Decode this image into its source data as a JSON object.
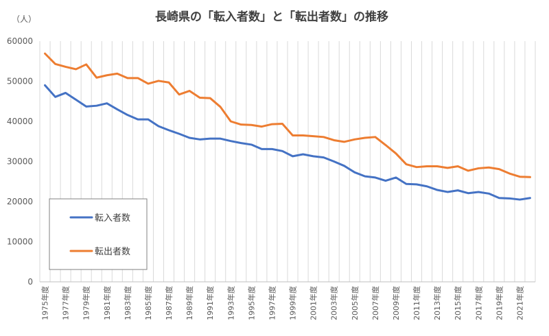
{
  "chart_data": {
    "type": "line",
    "title": "長崎県の「転入者数」と「転出者数」の推移",
    "ylabel": "（人）",
    "xlabel": "",
    "ylim": [
      0,
      60000
    ],
    "yticks": [
      0,
      10000,
      20000,
      30000,
      40000,
      50000,
      60000
    ],
    "grid": "vertical",
    "legend_position": "bottom-left",
    "x": [
      "1975年度",
      "1976年度",
      "1977年度",
      "1978年度",
      "1979年度",
      "1980年度",
      "1981年度",
      "1982年度",
      "1983年度",
      "1984年度",
      "1985年度",
      "1986年度",
      "1987年度",
      "1988年度",
      "1989年度",
      "1990年度",
      "1991年度",
      "1992年度",
      "1993年度",
      "1994年度",
      "1995年度",
      "1996年度",
      "1997年度",
      "1998年度",
      "1999年度",
      "2000年度",
      "2001年度",
      "2002年度",
      "2003年度",
      "2004年度",
      "2005年度",
      "2006年度",
      "2007年度",
      "2008年度",
      "2009年度",
      "2010年度",
      "2011年度",
      "2012年度",
      "2013年度",
      "2014年度",
      "2015年度",
      "2016年度",
      "2017年度",
      "2018年度",
      "2019年度",
      "2020年度",
      "2021年度",
      "2022年度"
    ],
    "tick_labels": [
      "1975年度",
      "1977年度",
      "1979年度",
      "1981年度",
      "1983年度",
      "1985年度",
      "1987年度",
      "1989年度",
      "1991年度",
      "1993年度",
      "1995年度",
      "1997年度",
      "1999年度",
      "2001年度",
      "2003年度",
      "2005年度",
      "2007年度",
      "2009年度",
      "2011年度",
      "2013年度",
      "2015年度",
      "2017年度",
      "2019年度",
      "2021年度"
    ],
    "series": [
      {
        "name": "転入者数",
        "color": "#4472C4",
        "values": [
          49000,
          46100,
          47100,
          45400,
          43700,
          43900,
          44500,
          43000,
          41600,
          40500,
          40500,
          38800,
          37800,
          36900,
          35900,
          35500,
          35700,
          35700,
          35100,
          34600,
          34200,
          33100,
          33100,
          32600,
          31300,
          31800,
          31300,
          31000,
          30000,
          28900,
          27300,
          26300,
          26000,
          25200,
          26000,
          24400,
          24300,
          23800,
          22900,
          22400,
          22800,
          22100,
          22400,
          22000,
          20900,
          20800,
          20500,
          20900
        ]
      },
      {
        "name": "転出者数",
        "color": "#ED7D31",
        "values": [
          56900,
          54300,
          53600,
          53000,
          54200,
          50900,
          51500,
          51900,
          50800,
          50800,
          49400,
          50100,
          49700,
          46700,
          47600,
          45900,
          45800,
          43600,
          40000,
          39200,
          39100,
          38700,
          39300,
          39400,
          36500,
          36500,
          36300,
          36100,
          35300,
          34900,
          35500,
          35900,
          36100,
          34100,
          32000,
          29300,
          28600,
          28800,
          28800,
          28400,
          28800,
          27700,
          28300,
          28500,
          28100,
          27000,
          26200,
          26100
        ]
      }
    ]
  }
}
